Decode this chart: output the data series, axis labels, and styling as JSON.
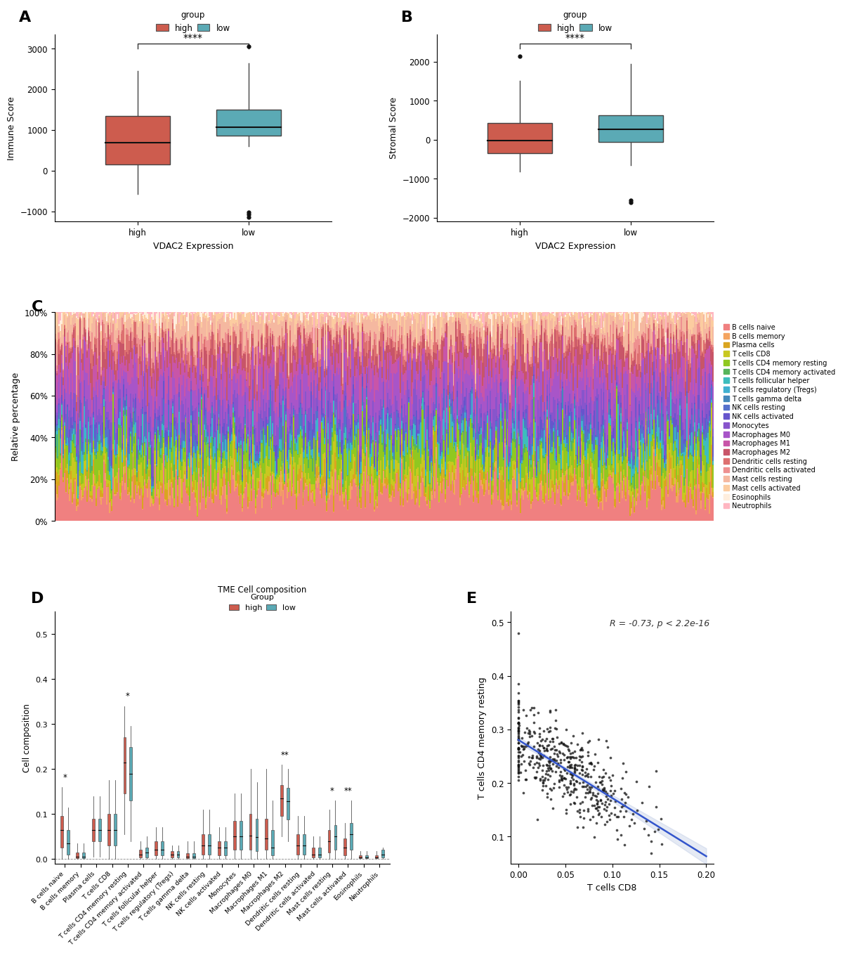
{
  "panel_A": {
    "ylabel": "Immune Score",
    "xlabel": "VDAC2 Expression",
    "high_box": {
      "q1": 150,
      "median": 680,
      "q3": 1350,
      "whisker_low": -580,
      "whisker_high": 2450,
      "outliers": []
    },
    "low_box": {
      "q1": 860,
      "median": 1060,
      "q3": 1500,
      "whisker_low": 600,
      "whisker_high": 2640,
      "outliers": [
        3050,
        -1020,
        -1080,
        -1140
      ]
    },
    "ylim": [
      -1250,
      3350
    ],
    "yticks": [
      -1000,
      0,
      1000,
      2000,
      3000
    ],
    "significance": "****",
    "high_color": "#CD5C4E",
    "low_color": "#5BAAB5"
  },
  "panel_B": {
    "ylabel": "Stromal Score",
    "xlabel": "VDAC2 Expression",
    "high_box": {
      "q1": -350,
      "median": -30,
      "q3": 420,
      "whisker_low": -820,
      "whisker_high": 1500,
      "outliers": [
        2130
      ]
    },
    "low_box": {
      "q1": -70,
      "median": 255,
      "q3": 620,
      "whisker_low": -650,
      "whisker_high": 1940,
      "outliers": [
        -1560,
        -1620
      ]
    },
    "ylim": [
      -2100,
      2700
    ],
    "yticks": [
      -2000,
      -1000,
      0,
      1000,
      2000
    ],
    "significance": "****",
    "high_color": "#CD5C4E",
    "low_color": "#5BAAB5"
  },
  "panel_C": {
    "ylabel": "Relative percentage",
    "num_samples": 500,
    "cell_types": [
      "B cells naive",
      "B cells memory",
      "Plasma cells",
      "T cells CD8",
      "T cells CD4 memory resting",
      "T cells CD4 memory activated",
      "T cells follicular helper",
      "T cells regulatory (Tregs)",
      "T cells gamma delta",
      "NK cells resting",
      "NK cells activated",
      "Monocytes",
      "Macrophages M0",
      "Macrophages M1",
      "Macrophages M2",
      "Dendritic cells resting",
      "Dendritic cells activated",
      "Mast cells resting",
      "Mast cells activated",
      "Eosinophils",
      "Neutrophils"
    ],
    "cell_colors": [
      "#F08080",
      "#F4A460",
      "#DAA520",
      "#C8C820",
      "#90C820",
      "#56B45A",
      "#3DBDBD",
      "#40B0D0",
      "#4488BB",
      "#5570CC",
      "#6655CC",
      "#8855CC",
      "#A855C8",
      "#C855A8",
      "#C85568",
      "#DD7070",
      "#EE9090",
      "#F5B8A0",
      "#FCCCA0",
      "#FFEEDD",
      "#FFB6C1"
    ],
    "alphas": [
      0.6,
      0.3,
      0.3,
      0.4,
      0.5,
      0.3,
      0.3,
      0.2,
      0.2,
      0.3,
      0.3,
      0.4,
      0.5,
      0.5,
      0.5,
      0.3,
      0.3,
      0.4,
      0.3,
      0.1,
      0.1
    ]
  },
  "panel_D": {
    "ylabel": "Cell composition",
    "categories": [
      "B cells naive",
      "B cells memory",
      "Plasma cells",
      "T cells CD8",
      "T cells CD4 memory resting",
      "T cells CD4 memory activated",
      "T cells follicular helper",
      "T cells regulatory (Tregs)",
      "T cells gamma delta",
      "NK cells resting",
      "NK cells activated",
      "Monocytes",
      "Macrophages M0",
      "Macrophages M1",
      "Macrophages M2",
      "Dendritic cells resting",
      "Dendritic cells activated",
      "Mast cells resting",
      "Mast cells activated",
      "Eosinophils",
      "Neutrophils"
    ],
    "significance": [
      "*",
      "",
      "",
      "",
      "*",
      "",
      "",
      "",
      "",
      "",
      "",
      "",
      "",
      "",
      "**",
      "",
      "",
      "*",
      "**",
      "",
      ""
    ],
    "sig_positions": [
      0,
      4,
      14,
      17,
      18
    ],
    "high_color": "#CD5C4E",
    "low_color": "#5BAAB5",
    "high_medians": [
      0.065,
      0.005,
      0.065,
      0.065,
      0.215,
      0.01,
      0.02,
      0.01,
      0.005,
      0.03,
      0.025,
      0.05,
      0.052,
      0.045,
      0.135,
      0.03,
      0.01,
      0.04,
      0.025,
      0.003,
      0.003
    ],
    "low_medians": [
      0.035,
      0.005,
      0.065,
      0.065,
      0.19,
      0.015,
      0.02,
      0.01,
      0.005,
      0.03,
      0.025,
      0.05,
      0.048,
      0.025,
      0.128,
      0.03,
      0.01,
      0.05,
      0.055,
      0.003,
      0.01
    ],
    "high_q1": [
      0.025,
      0.001,
      0.04,
      0.03,
      0.145,
      0.003,
      0.008,
      0.003,
      0.001,
      0.01,
      0.008,
      0.02,
      0.02,
      0.02,
      0.095,
      0.01,
      0.003,
      0.015,
      0.008,
      0.001,
      0.001
    ],
    "high_q3": [
      0.095,
      0.015,
      0.09,
      0.1,
      0.27,
      0.02,
      0.04,
      0.018,
      0.012,
      0.055,
      0.04,
      0.085,
      0.1,
      0.09,
      0.165,
      0.055,
      0.025,
      0.065,
      0.045,
      0.008,
      0.008
    ],
    "low_q1": [
      0.01,
      0.001,
      0.04,
      0.03,
      0.13,
      0.003,
      0.008,
      0.003,
      0.001,
      0.01,
      0.008,
      0.02,
      0.018,
      0.008,
      0.088,
      0.01,
      0.003,
      0.02,
      0.02,
      0.001,
      0.003
    ],
    "low_q3": [
      0.065,
      0.015,
      0.09,
      0.1,
      0.248,
      0.025,
      0.04,
      0.018,
      0.012,
      0.055,
      0.04,
      0.085,
      0.09,
      0.065,
      0.158,
      0.055,
      0.025,
      0.075,
      0.08,
      0.008,
      0.02
    ],
    "high_wl": [
      0.0,
      0.0,
      0.005,
      0.0,
      0.055,
      0.0,
      0.0,
      0.0,
      0.0,
      0.0,
      0.0,
      0.0,
      0.0,
      0.0,
      0.05,
      0.0,
      0.0,
      0.0,
      0.0,
      0.0,
      0.0
    ],
    "high_wh": [
      0.16,
      0.035,
      0.14,
      0.175,
      0.34,
      0.04,
      0.07,
      0.03,
      0.04,
      0.11,
      0.07,
      0.145,
      0.2,
      0.2,
      0.21,
      0.095,
      0.05,
      0.11,
      0.08,
      0.018,
      0.018
    ],
    "low_wl": [
      0.0,
      0.0,
      0.005,
      0.0,
      0.04,
      0.0,
      0.0,
      0.0,
      0.0,
      0.0,
      0.0,
      0.0,
      0.0,
      0.0,
      0.04,
      0.0,
      0.0,
      0.0,
      0.0,
      0.0,
      0.0
    ],
    "low_wh": [
      0.115,
      0.035,
      0.14,
      0.175,
      0.295,
      0.05,
      0.07,
      0.03,
      0.04,
      0.11,
      0.07,
      0.145,
      0.17,
      0.13,
      0.2,
      0.095,
      0.05,
      0.13,
      0.13,
      0.018,
      0.025
    ]
  },
  "panel_E": {
    "xlabel": "T cells CD8",
    "ylabel": "T cells CD4 memory resting",
    "annotation": "R = -0.73, p < 2.2e-16",
    "xlim": [
      -0.008,
      0.208
    ],
    "ylim": [
      0.05,
      0.52
    ],
    "yticks": [
      0.1,
      0.2,
      0.3,
      0.4,
      0.5
    ],
    "xticks": [
      0.0,
      0.05,
      0.1,
      0.15,
      0.2
    ],
    "dot_color": "#111111",
    "line_color": "#3355CC",
    "fill_color": "#AABBDD"
  }
}
